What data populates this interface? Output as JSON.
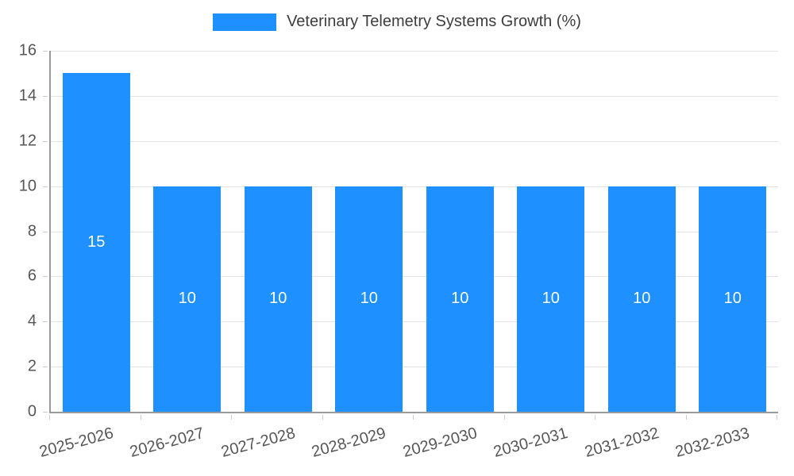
{
  "legend": {
    "label": "Veterinary Telemetry Systems Growth (%)",
    "swatch_color": "#1E90FF",
    "position": "top"
  },
  "chart_data": {
    "type": "bar",
    "title": "Veterinary Telemetry Systems Growth (%)",
    "series_name": "Veterinary Telemetry Systems Growth (%)",
    "categories": [
      "2025-2026",
      "2026-2027",
      "2027-2028",
      "2028-2029",
      "2029-2030",
      "2030-2031",
      "2031-2032",
      "2032-2033"
    ],
    "values": [
      15,
      10,
      10,
      10,
      10,
      10,
      10,
      10
    ],
    "xlabel": "",
    "ylabel": "",
    "ylim": [
      0,
      16
    ],
    "yticks": [
      0,
      2,
      4,
      6,
      8,
      10,
      12,
      14,
      16
    ],
    "grid": true,
    "legend_position": "top",
    "bar_color": "#1E90FF",
    "value_labels_position": "inside-center",
    "value_label_color": "#FFFFFF",
    "x_tick_rotation_deg": -15
  }
}
